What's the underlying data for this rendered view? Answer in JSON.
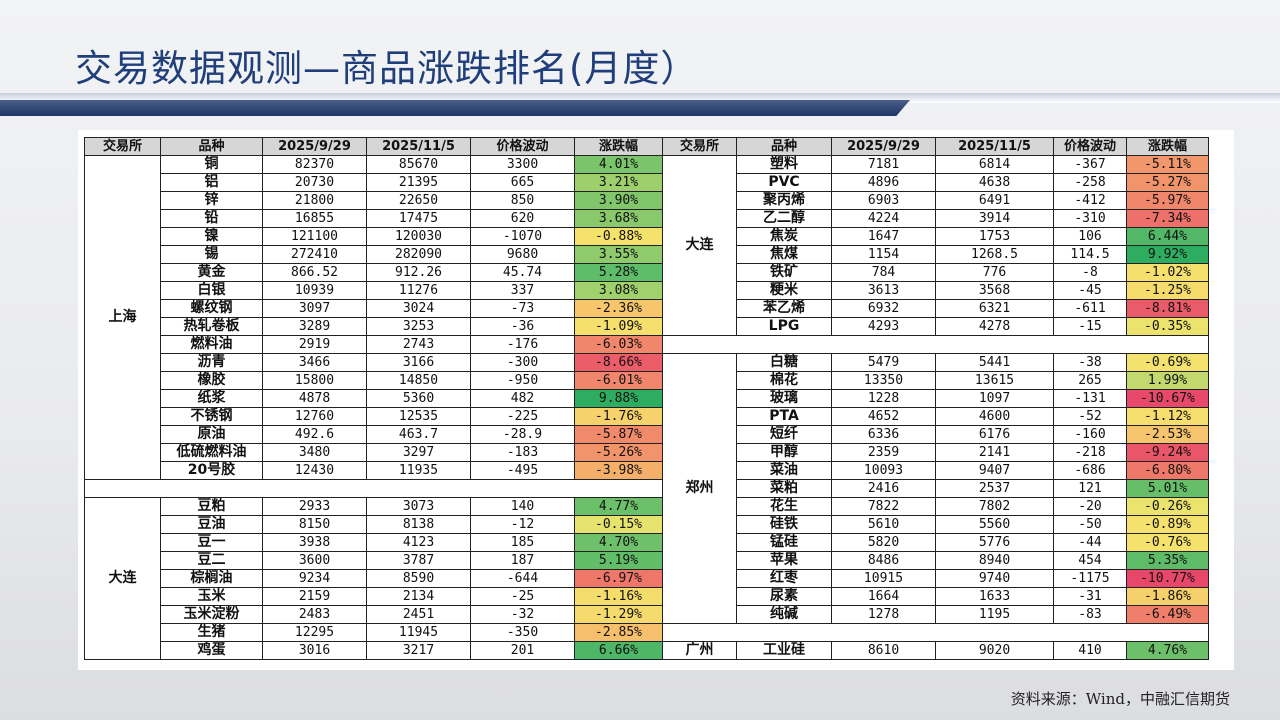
{
  "title": "交易数据观测—商品涨跌排名(月度）",
  "source": "资料来源：Wind，中融汇信期货",
  "headers": [
    "交易所",
    "品种",
    "2025/9/29",
    "2025/11/5",
    "价格波动",
    "涨跌幅"
  ],
  "left": {
    "groups": [
      {
        "exchange": "上海",
        "rows": [
          {
            "name": "铜",
            "p1": "82370",
            "p2": "85670",
            "diff": "3300",
            "pct": "4.01%",
            "color": "#7ac46c"
          },
          {
            "name": "铝",
            "p1": "20730",
            "p2": "21395",
            "diff": "665",
            "pct": "3.21%",
            "color": "#9dd06d"
          },
          {
            "name": "锌",
            "p1": "21800",
            "p2": "22650",
            "diff": "850",
            "pct": "3.90%",
            "color": "#82c66b"
          },
          {
            "name": "铅",
            "p1": "16855",
            "p2": "17475",
            "diff": "620",
            "pct": "3.68%",
            "color": "#8ac86c"
          },
          {
            "name": "镍",
            "p1": "121100",
            "p2": "120030",
            "diff": "-1070",
            "pct": "-0.88%",
            "color": "#f5e26d"
          },
          {
            "name": "锡",
            "p1": "272410",
            "p2": "282090",
            "diff": "9680",
            "pct": "3.55%",
            "color": "#8fca6c"
          },
          {
            "name": "黄金",
            "p1": "866.52",
            "p2": "912.26",
            "diff": "45.74",
            "pct": "5.28%",
            "color": "#5fbc69"
          },
          {
            "name": "白银",
            "p1": "10939",
            "p2": "11276",
            "diff": "337",
            "pct": "3.08%",
            "color": "#a1d16d"
          },
          {
            "name": "螺纹钢",
            "p1": "3097",
            "p2": "3024",
            "diff": "-73",
            "pct": "-2.36%",
            "color": "#f7c56c"
          },
          {
            "name": "热轧卷板",
            "p1": "3289",
            "p2": "3253",
            "diff": "-36",
            "pct": "-1.09%",
            "color": "#f5df6d"
          },
          {
            "name": "燃料油",
            "p1": "2919",
            "p2": "2743",
            "diff": "-176",
            "pct": "-6.03%",
            "color": "#f0866b"
          },
          {
            "name": "沥青",
            "p1": "3466",
            "p2": "3166",
            "diff": "-300",
            "pct": "-8.66%",
            "color": "#ea5d69"
          },
          {
            "name": "橡胶",
            "p1": "15800",
            "p2": "14850",
            "diff": "-950",
            "pct": "-6.01%",
            "color": "#f0866b"
          },
          {
            "name": "纸浆",
            "p1": "4878",
            "p2": "5360",
            "diff": "482",
            "pct": "9.88%",
            "color": "#2ead60"
          },
          {
            "name": "不锈钢",
            "p1": "12760",
            "p2": "12535",
            "diff": "-225",
            "pct": "-1.76%",
            "color": "#f6d26c"
          },
          {
            "name": "原油",
            "p1": "492.6",
            "p2": "463.7",
            "diff": "-28.9",
            "pct": "-5.87%",
            "color": "#f1896b"
          },
          {
            "name": "低硫燃料油",
            "p1": "3480",
            "p2": "3297",
            "diff": "-183",
            "pct": "-5.26%",
            "color": "#f2946b"
          },
          {
            "name": "20号胶",
            "p1": "12430",
            "p2": "11935",
            "diff": "-495",
            "pct": "-3.98%",
            "color": "#f4b06b"
          }
        ]
      },
      {
        "exchange": "大连",
        "rows": [
          {
            "name": "豆粕",
            "p1": "2933",
            "p2": "3073",
            "diff": "140",
            "pct": "4.77%",
            "color": "#6cc06a"
          },
          {
            "name": "豆油",
            "p1": "8150",
            "p2": "8138",
            "diff": "-12",
            "pct": "-0.15%",
            "color": "#e6e36e"
          },
          {
            "name": "豆一",
            "p1": "3938",
            "p2": "4123",
            "diff": "185",
            "pct": "4.70%",
            "color": "#6ec06a"
          },
          {
            "name": "豆二",
            "p1": "3600",
            "p2": "3787",
            "diff": "187",
            "pct": "5.19%",
            "color": "#62bd69"
          },
          {
            "name": "棕榈油",
            "p1": "9234",
            "p2": "8590",
            "diff": "-644",
            "pct": "-6.97%",
            "color": "#ee776a"
          },
          {
            "name": "玉米",
            "p1": "2159",
            "p2": "2134",
            "diff": "-25",
            "pct": "-1.16%",
            "color": "#f5dd6d"
          },
          {
            "name": "玉米淀粉",
            "p1": "2483",
            "p2": "2451",
            "diff": "-32",
            "pct": "-1.29%",
            "color": "#f5db6d"
          },
          {
            "name": "生猪",
            "p1": "12295",
            "p2": "11945",
            "diff": "-350",
            "pct": "-2.85%",
            "color": "#f6bf6c"
          },
          {
            "name": "鸡蛋",
            "p1": "3016",
            "p2": "3217",
            "diff": "201",
            "pct": "6.66%",
            "color": "#4db667"
          }
        ]
      }
    ]
  },
  "right": {
    "groups": [
      {
        "exchange": "大连",
        "rows": [
          {
            "name": "塑料",
            "p1": "7181",
            "p2": "6814",
            "diff": "-367",
            "pct": "-5.11%",
            "color": "#f2966b"
          },
          {
            "name": "PVC",
            "p1": "4896",
            "p2": "4638",
            "diff": "-258",
            "pct": "-5.27%",
            "color": "#f2946b"
          },
          {
            "name": "聚丙烯",
            "p1": "6903",
            "p2": "6491",
            "diff": "-412",
            "pct": "-5.97%",
            "color": "#f0876b"
          },
          {
            "name": "乙二醇",
            "p1": "4224",
            "p2": "3914",
            "diff": "-310",
            "pct": "-7.34%",
            "color": "#ed716a"
          },
          {
            "name": "焦炭",
            "p1": "1647",
            "p2": "1753",
            "diff": "106",
            "pct": "6.44%",
            "color": "#52b867"
          },
          {
            "name": "焦煤",
            "p1": "1154",
            "p2": "1268.5",
            "diff": "114.5",
            "pct": "9.92%",
            "color": "#2ead60"
          },
          {
            "name": "铁矿",
            "p1": "784",
            "p2": "776",
            "diff": "-8",
            "pct": "-1.02%",
            "color": "#f5df6d"
          },
          {
            "name": "粳米",
            "p1": "3613",
            "p2": "3568",
            "diff": "-45",
            "pct": "-1.25%",
            "color": "#f5dc6d"
          },
          {
            "name": "苯乙烯",
            "p1": "6932",
            "p2": "6321",
            "diff": "-611",
            "pct": "-8.81%",
            "color": "#ea5b69"
          },
          {
            "name": "LPG",
            "p1": "4293",
            "p2": "4278",
            "diff": "-15",
            "pct": "-0.35%",
            "color": "#ebe36e"
          }
        ]
      },
      {
        "exchange": "郑州",
        "rows": [
          {
            "name": "白糖",
            "p1": "5479",
            "p2": "5441",
            "diff": "-38",
            "pct": "-0.69%",
            "color": "#f3e26d"
          },
          {
            "name": "棉花",
            "p1": "13350",
            "p2": "13615",
            "diff": "265",
            "pct": "1.99%",
            "color": "#c3d96e"
          },
          {
            "name": "玻璃",
            "p1": "1228",
            "p2": "1097",
            "diff": "-131",
            "pct": "-10.67%",
            "color": "#e8496a"
          },
          {
            "name": "PTA",
            "p1": "4652",
            "p2": "4600",
            "diff": "-52",
            "pct": "-1.12%",
            "color": "#f5de6d"
          },
          {
            "name": "短纤",
            "p1": "6336",
            "p2": "6176",
            "diff": "-160",
            "pct": "-2.53%",
            "color": "#f6c46c"
          },
          {
            "name": "甲醇",
            "p1": "2359",
            "p2": "2141",
            "diff": "-218",
            "pct": "-9.24%",
            "color": "#e95569"
          },
          {
            "name": "菜油",
            "p1": "10093",
            "p2": "9407",
            "diff": "-686",
            "pct": "-6.80%",
            "color": "#ee796a"
          },
          {
            "name": "菜粕",
            "p1": "2416",
            "p2": "2537",
            "diff": "121",
            "pct": "5.01%",
            "color": "#66be69"
          },
          {
            "name": "花生",
            "p1": "7822",
            "p2": "7802",
            "diff": "-20",
            "pct": "-0.26%",
            "color": "#eae36e"
          },
          {
            "name": "硅铁",
            "p1": "5610",
            "p2": "5560",
            "diff": "-50",
            "pct": "-0.89%",
            "color": "#f5e16d"
          },
          {
            "name": "锰硅",
            "p1": "5820",
            "p2": "5776",
            "diff": "-44",
            "pct": "-0.76%",
            "color": "#f4e26d"
          },
          {
            "name": "苹果",
            "p1": "8486",
            "p2": "8940",
            "diff": "454",
            "pct": "5.35%",
            "color": "#5ebc68"
          },
          {
            "name": "红枣",
            "p1": "10915",
            "p2": "9740",
            "diff": "-1175",
            "pct": "-10.77%",
            "color": "#e8476a"
          },
          {
            "name": "尿素",
            "p1": "1664",
            "p2": "1633",
            "diff": "-31",
            "pct": "-1.86%",
            "color": "#f6d06c"
          },
          {
            "name": "纯碱",
            "p1": "1278",
            "p2": "1195",
            "diff": "-83",
            "pct": "-6.49%",
            "color": "#ef7f6a"
          }
        ]
      },
      {
        "exchange": "广州",
        "rows": [
          {
            "name": "工业硅",
            "p1": "8610",
            "p2": "9020",
            "diff": "410",
            "pct": "4.76%",
            "color": "#6cc06a"
          }
        ]
      }
    ]
  }
}
